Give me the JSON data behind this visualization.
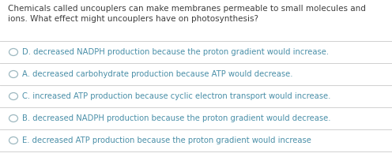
{
  "background_color": "#ffffff",
  "question_line1": "Chemicals called uncouplers can make membranes permeable to small molecules and",
  "question_line2": "ions. What effect might uncouplers have on photosynthesis?",
  "question_color": "#3d3d3d",
  "options": [
    "D. decreased NADPH production because the proton gradient would increase.",
    "A. decreased carbohydrate production because ATP would decrease.",
    "C. increased ATP production because cyclic electron transport would increase.",
    "B. decreased NADPH production because the proton gradient would decrease.",
    "E. decreased ATP production because the proton gradient would increase"
  ],
  "option_color": "#4a8fa8",
  "circle_color": "#9db8c0",
  "line_color": "#d0d0d0",
  "font_size_question": 7.5,
  "font_size_option": 7.2,
  "figsize": [
    4.96,
    1.99
  ],
  "dpi": 100
}
